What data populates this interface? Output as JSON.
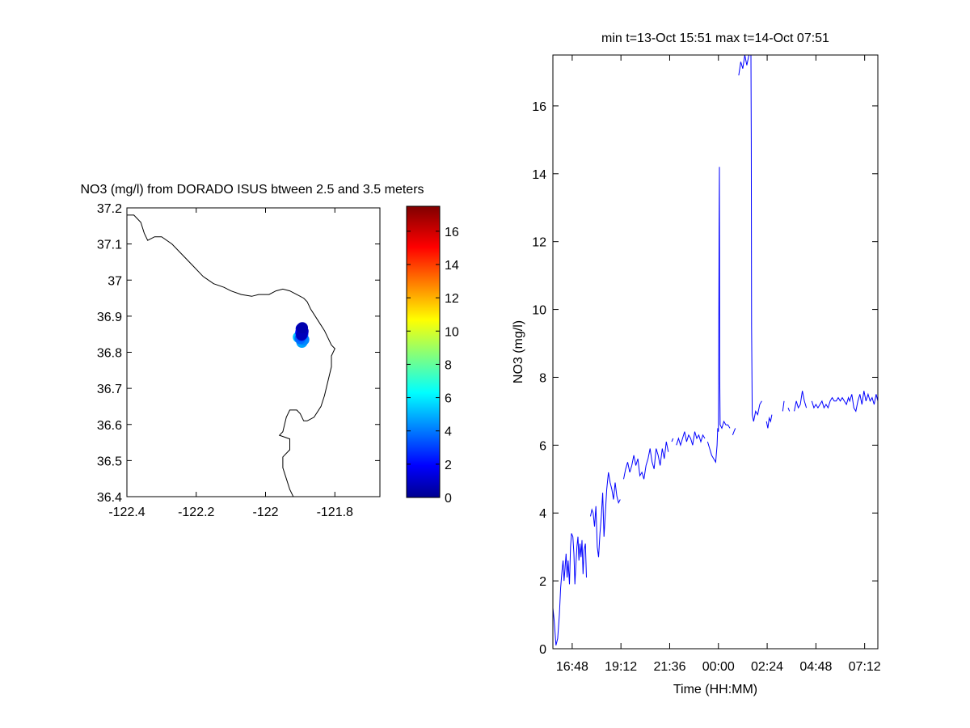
{
  "chart_data": [
    {
      "type": "scatter",
      "title": "NO3 (mg/l) from DORADO ISUS btween 2.5 and 3.5 meters",
      "xlabel": "",
      "ylabel": "",
      "xlim": [
        -122.4,
        -121.67
      ],
      "ylim": [
        36.4,
        37.2
      ],
      "x_ticks": [
        -122.4,
        -122.2,
        -122,
        -121.8
      ],
      "y_ticks": [
        36.4,
        36.5,
        36.6,
        36.7,
        36.8,
        36.9,
        37,
        37.1,
        37.2
      ],
      "x_tick_labels": [
        "-122.4",
        "-122.2",
        "-122",
        "-121.8"
      ],
      "y_tick_labels": [
        "36.4",
        "36.5",
        "36.6",
        "36.7",
        "36.8",
        "36.9",
        "37",
        "37.1",
        "37.2"
      ],
      "grid": false,
      "coastline": [
        [
          -122.4,
          37.18
        ],
        [
          -122.38,
          37.18
        ],
        [
          -122.36,
          37.16
        ],
        [
          -122.35,
          37.13
        ],
        [
          -122.34,
          37.11
        ],
        [
          -122.32,
          37.12
        ],
        [
          -122.3,
          37.12
        ],
        [
          -122.27,
          37.1
        ],
        [
          -122.24,
          37.07
        ],
        [
          -122.21,
          37.04
        ],
        [
          -122.18,
          37.01
        ],
        [
          -122.15,
          36.99
        ],
        [
          -122.12,
          36.98
        ],
        [
          -122.1,
          36.97
        ],
        [
          -122.07,
          36.96
        ],
        [
          -122.04,
          36.955
        ],
        [
          -122.02,
          36.96
        ],
        [
          -121.99,
          36.96
        ],
        [
          -121.97,
          36.97
        ],
        [
          -121.95,
          36.975
        ],
        [
          -121.93,
          36.97
        ],
        [
          -121.91,
          36.96
        ],
        [
          -121.89,
          36.95
        ],
        [
          -121.88,
          36.94
        ],
        [
          -121.87,
          36.92
        ],
        [
          -121.85,
          36.89
        ],
        [
          -121.83,
          36.86
        ],
        [
          -121.81,
          36.82
        ],
        [
          -121.8,
          36.81
        ],
        [
          -121.81,
          36.79
        ],
        [
          -121.81,
          36.76
        ],
        [
          -121.82,
          36.72
        ],
        [
          -121.83,
          36.68
        ],
        [
          -121.84,
          36.65
        ],
        [
          -121.86,
          36.62
        ],
        [
          -121.88,
          36.61
        ],
        [
          -121.89,
          36.61
        ],
        [
          -121.9,
          36.63
        ],
        [
          -121.91,
          36.64
        ],
        [
          -121.93,
          36.64
        ],
        [
          -121.94,
          36.62
        ],
        [
          -121.95,
          36.58
        ],
        [
          -121.96,
          36.57
        ],
        [
          -121.93,
          36.56
        ],
        [
          -121.93,
          36.53
        ],
        [
          -121.95,
          36.51
        ],
        [
          -121.95,
          36.48
        ],
        [
          -121.94,
          36.45
        ],
        [
          -121.93,
          36.42
        ],
        [
          -121.92,
          36.4
        ]
      ],
      "points": [
        {
          "lon": -121.905,
          "lat": 36.842,
          "value": 5.5
        },
        {
          "lon": -121.895,
          "lat": 36.828,
          "value": 5.0
        },
        {
          "lon": -121.89,
          "lat": 36.835,
          "value": 4.5
        },
        {
          "lon": -121.9,
          "lat": 36.838,
          "value": 4.0
        },
        {
          "lon": -121.897,
          "lat": 36.845,
          "value": 3.5
        },
        {
          "lon": -121.893,
          "lat": 36.85,
          "value": 3.0
        },
        {
          "lon": -121.898,
          "lat": 36.855,
          "value": 2.5
        },
        {
          "lon": -121.894,
          "lat": 36.86,
          "value": 2.0
        },
        {
          "lon": -121.897,
          "lat": 36.865,
          "value": 1.5
        },
        {
          "lon": -121.892,
          "lat": 36.858,
          "value": 1.2
        },
        {
          "lon": -121.896,
          "lat": 36.848,
          "value": 1.0
        },
        {
          "lon": -121.894,
          "lat": 36.868,
          "value": 0.8
        }
      ],
      "colorbar": {
        "colormap": "jet",
        "min": 0,
        "max": 17.5,
        "ticks": [
          0,
          2,
          4,
          6,
          8,
          10,
          12,
          14,
          16
        ],
        "tick_labels": [
          "0",
          "2",
          "4",
          "6",
          "8",
          "10",
          "12",
          "14",
          "16"
        ]
      }
    },
    {
      "type": "line",
      "title": "min t=13-Oct 15:51 max t=14-Oct 07:51",
      "xlabel": "Time (HH:MM)",
      "ylabel": "NO3 (mg/l)",
      "xlim": [
        "15:51",
        "07:51"
      ],
      "ylim": [
        0,
        17.5
      ],
      "x_tick_labels": [
        "16:48",
        "19:12",
        "21:36",
        "00:00",
        "02:24",
        "04:48",
        "07:12"
      ],
      "x_ticks": [
        "16:48",
        "19:12",
        "21:36",
        "00:00",
        "02:24",
        "04:48",
        "07:12"
      ],
      "y_ticks": [
        0,
        2,
        4,
        6,
        8,
        10,
        12,
        14,
        16
      ],
      "y_tick_labels": [
        "0",
        "2",
        "4",
        "6",
        "8",
        "10",
        "12",
        "14",
        "16"
      ],
      "grid": false,
      "line_color": "#0000ff",
      "segments": [
        [
          [
            "15:51",
            1.2
          ],
          [
            "15:55",
            0.8
          ],
          [
            "16:00",
            0.1
          ],
          [
            "16:05",
            0.3
          ],
          [
            "16:10",
            1.0
          ],
          [
            "16:14",
            1.8
          ],
          [
            "16:18",
            2.3
          ],
          [
            "16:21",
            2.6
          ],
          [
            "16:24",
            2.0
          ],
          [
            "16:27",
            2.4
          ],
          [
            "16:30",
            2.8
          ],
          [
            "16:33",
            2.1
          ],
          [
            "16:36",
            2.6
          ],
          [
            "16:40",
            1.9
          ],
          [
            "16:43",
            3.0
          ],
          [
            "16:46",
            3.4
          ],
          [
            "16:50",
            3.3
          ],
          [
            "16:53",
            2.8
          ],
          [
            "16:56",
            1.9
          ],
          [
            "16:59",
            2.5
          ],
          [
            "17:02",
            3.0
          ],
          [
            "17:05",
            3.3
          ],
          [
            "17:08",
            2.6
          ],
          [
            "17:11",
            3.1
          ],
          [
            "17:14",
            2.7
          ],
          [
            "17:17",
            3.2
          ],
          [
            "17:20",
            2.2
          ],
          [
            "17:23",
            2.9
          ],
          [
            "17:27",
            3.1
          ],
          [
            "17:30",
            2.1
          ]
        ],
        [
          [
            "17:42",
            3.9
          ],
          [
            "17:46",
            4.1
          ],
          [
            "17:50",
            4.0
          ],
          [
            "17:54",
            3.6
          ],
          [
            "17:58",
            4.2
          ],
          [
            "18:02",
            3.0
          ],
          [
            "18:06",
            2.7
          ],
          [
            "18:10",
            3.4
          ],
          [
            "18:14",
            3.9
          ],
          [
            "18:18",
            4.6
          ],
          [
            "18:22",
            3.3
          ],
          [
            "18:26",
            4.0
          ],
          [
            "18:30",
            4.7
          ],
          [
            "18:35",
            5.2
          ],
          [
            "18:40",
            4.9
          ],
          [
            "18:45",
            4.7
          ],
          [
            "18:50",
            4.4
          ],
          [
            "18:55",
            4.9
          ],
          [
            "19:00",
            4.5
          ],
          [
            "19:05",
            4.3
          ],
          [
            "19:10",
            4.4
          ]
        ],
        [
          [
            "19:20",
            5.0
          ],
          [
            "19:26",
            5.3
          ],
          [
            "19:32",
            5.5
          ],
          [
            "19:38",
            5.2
          ],
          [
            "19:44",
            5.4
          ],
          [
            "19:50",
            5.7
          ],
          [
            "19:56",
            5.4
          ],
          [
            "20:02",
            5.6
          ],
          [
            "20:08",
            5.1
          ],
          [
            "20:14",
            5.2
          ],
          [
            "20:20",
            5.0
          ],
          [
            "20:26",
            5.4
          ],
          [
            "20:32",
            5.6
          ],
          [
            "20:38",
            5.9
          ],
          [
            "20:44",
            5.5
          ],
          [
            "20:50",
            5.3
          ],
          [
            "20:56",
            5.9
          ],
          [
            "21:02",
            5.7
          ],
          [
            "21:08",
            5.4
          ],
          [
            "21:14",
            5.9
          ],
          [
            "21:20",
            5.6
          ],
          [
            "21:26",
            6.1
          ],
          [
            "21:32",
            5.8
          ]
        ],
        [
          [
            "21:42",
            6.1
          ],
          [
            "21:46",
            6.2
          ]
        ],
        [
          [
            "21:56",
            6.0
          ],
          [
            "22:02",
            6.2
          ],
          [
            "22:08",
            6.0
          ],
          [
            "22:14",
            6.2
          ],
          [
            "22:20",
            6.4
          ],
          [
            "22:26",
            6.1
          ],
          [
            "22:32",
            6.3
          ],
          [
            "22:38",
            6.2
          ],
          [
            "22:44",
            6.0
          ],
          [
            "22:50",
            6.4
          ],
          [
            "22:56",
            6.2
          ],
          [
            "23:02",
            6.3
          ],
          [
            "23:08",
            6.1
          ],
          [
            "23:14",
            6.3
          ],
          [
            "23:20",
            6.2
          ]
        ],
        [
          [
            "23:28",
            6.1
          ],
          [
            "23:34",
            5.9
          ],
          [
            "23:40",
            5.7
          ],
          [
            "23:46",
            5.6
          ],
          [
            "23:52",
            5.5
          ],
          [
            "23:56",
            6.0
          ],
          [
            "23:58",
            6.5
          ],
          [
            "24:00",
            6.4
          ],
          [
            "24:02",
            12.3
          ],
          [
            "24:03",
            14.2
          ],
          [
            "24:04",
            8.0
          ],
          [
            "24:05",
            6.6
          ],
          [
            "24:10",
            6.5
          ],
          [
            "24:16",
            6.7
          ],
          [
            "24:22",
            6.6
          ],
          [
            "24:28",
            6.6
          ],
          [
            "24:34",
            6.5
          ]
        ],
        [
          [
            "24:42",
            6.3
          ],
          [
            "24:46",
            6.4
          ],
          [
            "24:50",
            6.5
          ]
        ],
        [
          [
            "25:00",
            16.9
          ],
          [
            "25:06",
            17.3
          ],
          [
            "25:12",
            17.1
          ],
          [
            "25:18",
            17.5
          ],
          [
            "25:24",
            17.2
          ],
          [
            "25:30",
            17.5
          ],
          [
            "25:36",
            17.5
          ],
          [
            "25:37",
            15.0
          ],
          [
            "25:38",
            9.5
          ],
          [
            "25:40",
            6.9
          ],
          [
            "25:44",
            6.7
          ],
          [
            "25:50",
            7.0
          ],
          [
            "25:56",
            6.9
          ],
          [
            "26:02",
            7.2
          ],
          [
            "26:08",
            7.3
          ]
        ],
        [
          [
            "26:22",
            6.7
          ],
          [
            "26:26",
            6.5
          ],
          [
            "26:30",
            6.8
          ],
          [
            "26:34",
            6.7
          ],
          [
            "26:38",
            6.9
          ]
        ],
        [
          [
            "27:10",
            7.0
          ],
          [
            "27:14",
            7.3
          ]
        ],
        [
          [
            "27:26",
            7.1
          ],
          [
            "27:30",
            7.0
          ]
        ],
        [
          [
            "27:44",
            7.0
          ],
          [
            "27:50",
            7.3
          ],
          [
            "27:56",
            7.1
          ],
          [
            "28:02",
            7.2
          ],
          [
            "28:08",
            7.6
          ],
          [
            "28:14",
            7.3
          ],
          [
            "28:20",
            7.1
          ]
        ],
        [
          [
            "28:36",
            7.3
          ],
          [
            "28:42",
            7.1
          ],
          [
            "28:48",
            7.2
          ],
          [
            "28:54",
            7.1
          ],
          [
            "29:00",
            7.2
          ],
          [
            "29:06",
            7.3
          ],
          [
            "29:12",
            7.1
          ],
          [
            "29:18",
            7.2
          ],
          [
            "29:24",
            7.1
          ],
          [
            "29:30",
            7.3
          ],
          [
            "29:36",
            7.4
          ],
          [
            "29:42",
            7.3
          ],
          [
            "29:48",
            7.3
          ],
          [
            "29:54",
            7.4
          ],
          [
            "30:00",
            7.3
          ],
          [
            "30:06",
            7.4
          ],
          [
            "30:12",
            7.3
          ],
          [
            "30:18",
            7.2
          ],
          [
            "30:24",
            7.4
          ],
          [
            "30:28",
            7.3
          ],
          [
            "30:34",
            7.5
          ],
          [
            "30:40",
            7.1
          ],
          [
            "30:46",
            7.0
          ],
          [
            "30:52",
            7.3
          ],
          [
            "30:58",
            7.5
          ],
          [
            "31:04",
            7.2
          ],
          [
            "31:10",
            7.6
          ],
          [
            "31:16",
            7.3
          ],
          [
            "31:22",
            7.5
          ],
          [
            "31:28",
            7.3
          ],
          [
            "31:34",
            7.4
          ],
          [
            "31:40",
            7.2
          ],
          [
            "31:46",
            7.5
          ],
          [
            "31:51",
            7.3
          ]
        ]
      ]
    }
  ]
}
